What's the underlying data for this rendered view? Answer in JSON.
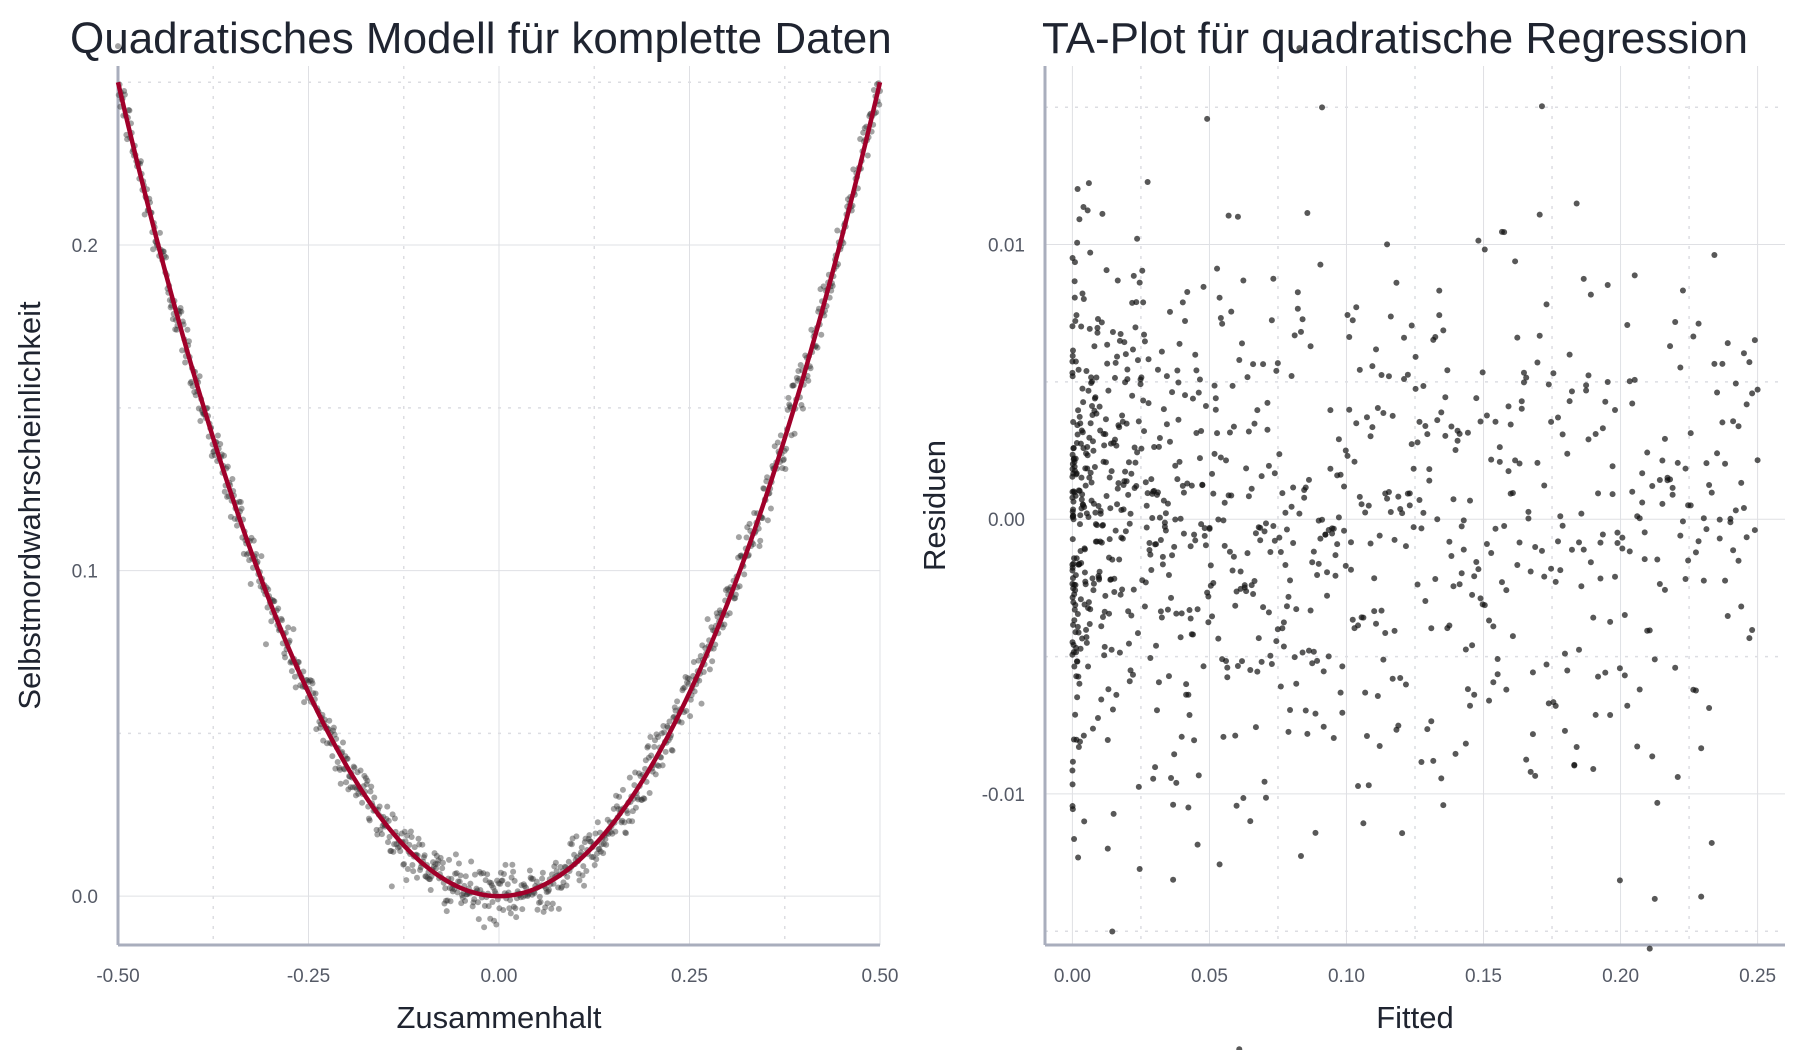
{
  "chart_data": [
    {
      "type": "scatter",
      "title": "Quadratisches Modell für komplette Daten",
      "xlabel": "Zusammenhalt",
      "ylabel": "Selbstmordwahrscheinlichkeit",
      "xlim": [
        -0.5,
        0.5
      ],
      "ylim": [
        -0.015,
        0.255
      ],
      "x_ticks": [
        -0.5,
        -0.25,
        0.0,
        0.25,
        0.5
      ],
      "x_tick_labels": [
        "-0.50",
        "-0.25",
        "0.00",
        "0.25",
        "0.50"
      ],
      "y_ticks": [
        0.0,
        0.1,
        0.2
      ],
      "y_tick_labels": [
        "0.0",
        "0.1",
        "0.2"
      ],
      "grid": true,
      "series": [
        {
          "kind": "points",
          "color": "#333333",
          "n_points": 1000,
          "model": "y = x^2 + noise",
          "noise_sd": 0.004
        },
        {
          "kind": "fit-line",
          "color": "#a0002a",
          "model": "y = x^2",
          "x_range": [
            -0.5,
            0.5
          ]
        }
      ]
    },
    {
      "type": "scatter",
      "title": "TA-Plot für quadratische Regression",
      "xlabel": "Fitted",
      "ylabel": "Residuen",
      "xlim": [
        -0.01,
        0.26
      ],
      "ylim": [
        -0.0155,
        0.0165
      ],
      "x_ticks": [
        0.0,
        0.05,
        0.1,
        0.15,
        0.2,
        0.25
      ],
      "x_tick_labels": [
        "0.00",
        "0.05",
        "0.10",
        "0.15",
        "0.20",
        "0.25"
      ],
      "y_ticks": [
        -0.01,
        0.0,
        0.01
      ],
      "y_tick_labels": [
        "-0.01",
        "0.00",
        "0.01"
      ],
      "grid": true,
      "series": [
        {
          "kind": "points",
          "color": "#111111",
          "n_points": 1000,
          "model": "residual vs fitted",
          "noise_sd": 0.005
        }
      ]
    }
  ]
}
